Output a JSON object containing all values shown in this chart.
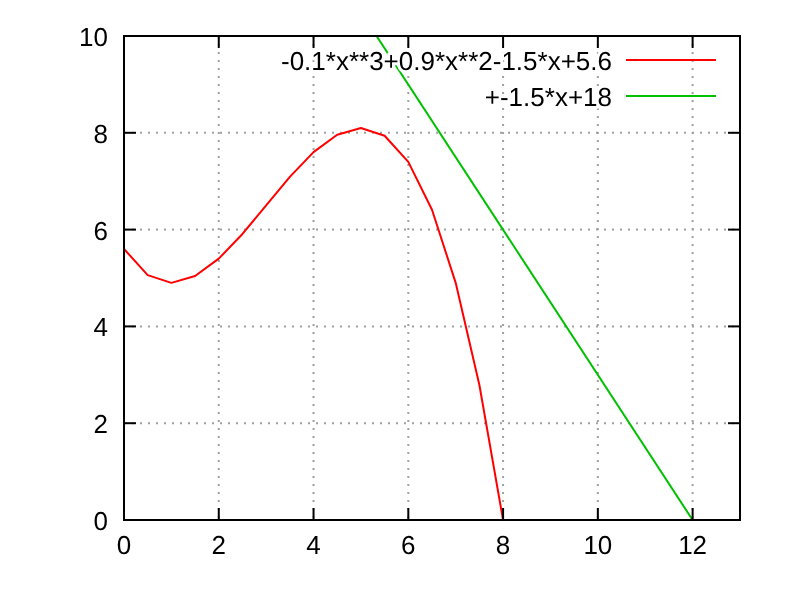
{
  "chart_data": {
    "type": "line",
    "xlim": [
      0,
      13
    ],
    "ylim": [
      0,
      10
    ],
    "xticks": [
      0,
      2,
      4,
      6,
      8,
      10,
      12
    ],
    "yticks": [
      0,
      2,
      4,
      6,
      8,
      10
    ],
    "grid": true,
    "legend": "top right",
    "line_style": "solid",
    "marker": "none",
    "series": [
      {
        "name": "-0.1*x**3+0.9*x**2-1.5*x+5.6",
        "color": "#ff0000",
        "x": [
          0,
          0.5,
          1,
          1.5,
          2,
          2.5,
          3,
          3.5,
          4,
          4.5,
          5,
          5.5,
          6,
          6.5,
          7,
          7.5,
          8
        ],
        "values": [
          5.6,
          5.06,
          4.9,
          5.04,
          5.4,
          5.91,
          6.5,
          7.09,
          7.6,
          7.96,
          8.1,
          7.94,
          7.4,
          6.41,
          4.9,
          2.79,
          0
        ]
      },
      {
        "name": "+-1.5*x+18",
        "color": "#00c000",
        "x": [
          5.33,
          12
        ],
        "values": [
          10,
          0
        ]
      }
    ]
  }
}
